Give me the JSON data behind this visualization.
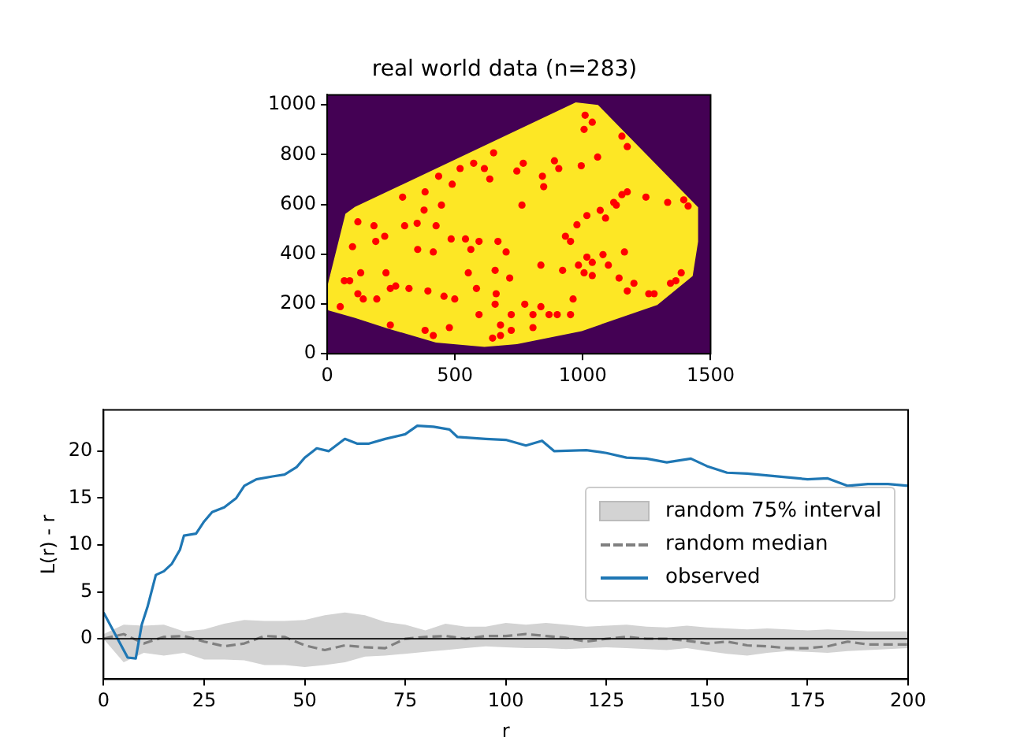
{
  "chart_data": [
    {
      "type": "scatter",
      "title": "real world data (n=283)",
      "xlim": [
        0,
        1500
      ],
      "ylim": [
        0,
        1040
      ],
      "xticks": [
        0,
        500,
        1000,
        1500
      ],
      "yticks": [
        0,
        200,
        400,
        600,
        800,
        1000
      ],
      "grid": false,
      "legend": false,
      "bands": [
        {
          "axis": "y",
          "from": 0,
          "to": 1040,
          "color": "#440154"
        }
      ],
      "series": [
        {
          "type": "area",
          "color": "#fde725",
          "x": [
            4,
            4,
            74,
            110,
            973,
            1058,
            1448,
            1448,
            1427,
            1290,
            995,
            742,
            615,
            426,
            236,
            110,
            4
          ],
          "values": [
            178,
            272,
            560,
            587,
            1006,
            996,
            587,
            451,
            314,
            199,
            94,
            42,
            31,
            48,
            105,
            147,
            178
          ]
        },
        {
          "color": "#ff0000",
          "x": [
            51,
            67,
            88,
            120,
            99,
            131,
            120,
            141,
            183,
            190,
            194,
            225,
            230,
            247,
            247,
            303,
            295,
            320,
            352,
            354,
            379,
            383,
            394,
            415,
            426,
            436,
            447,
            457,
            489,
            485,
            499,
            520,
            541,
            552,
            573,
            584,
            594,
            615,
            636,
            651,
            657,
            661,
            668,
            678,
            700,
            714,
            742,
            762,
            767,
            773,
            805,
            836,
            836,
            842,
            847,
            889,
            906,
            921,
            952,
            962,
            977,
            994,
            1005,
            1009,
            1037,
            1016,
            1037,
            1058,
            1068,
            1089,
            1121,
            1131,
            1142,
            1153,
            1163,
            1174,
            1174,
            1153,
            1174,
            1200,
            1247,
            1258,
            1279,
            1332,
            1343,
            1364,
            1385,
            1395,
            1412,
            868,
            900,
            932,
            952,
            983,
            1005,
            1016,
            1079,
            1100,
            1037,
            678,
            720,
            647,
            478,
            415,
            383,
            562,
            594,
            268,
            805,
            720,
            657
          ],
          "values": [
            189,
            293,
            293,
            530,
            430,
            325,
            241,
            220,
            514,
            451,
            220,
            472,
            325,
            262,
            115,
            514,
            629,
            262,
            524,
            419,
            577,
            650,
            252,
            409,
            514,
            713,
            597,
            231,
            681,
            461,
            220,
            744,
            461,
            325,
            765,
            262,
            157,
            744,
            702,
            807,
            335,
            241,
            451,
            115,
            409,
            304,
            734,
            597,
            765,
            199,
            105,
            189,
            356,
            713,
            671,
            775,
            744,
            335,
            157,
            220,
            518,
            755,
            901,
            958,
            930,
            555,
            314,
            790,
            576,
            545,
            608,
            597,
            304,
            639,
            409,
            650,
            832,
            874,
            252,
            283,
            629,
            241,
            241,
            608,
            283,
            293,
            325,
            618,
            593,
            157,
            157,
            472,
            451,
            356,
            325,
            388,
            398,
            356,
            367,
            73,
            94,
            63,
            105,
            73,
            94,
            419,
            451,
            272,
            157,
            157,
            199
          ]
        }
      ]
    },
    {
      "type": "line",
      "xlabel": "r",
      "ylabel": "L(r) - r",
      "xlim": [
        0,
        200
      ],
      "ylim": [
        -4.3,
        24.4
      ],
      "xticks": [
        0,
        25,
        50,
        75,
        100,
        125,
        150,
        175,
        200
      ],
      "yticks": [
        0,
        5,
        10,
        15,
        20
      ],
      "grid": false,
      "legend": "right",
      "marker": "none",
      "ref_lines": [
        {
          "axis": "y",
          "value": 0,
          "color": "#000000"
        }
      ],
      "series": [
        {
          "name": "random 75% interval",
          "type": "area",
          "color": "#d3d3d3",
          "x": [
            0,
            5,
            10,
            15,
            20,
            25,
            30,
            35,
            40,
            45,
            50,
            55,
            60,
            65,
            70,
            75,
            80,
            85,
            90,
            95,
            100,
            105,
            110,
            115,
            120,
            125,
            130,
            135,
            140,
            145,
            150,
            155,
            160,
            165,
            170,
            175,
            180,
            185,
            190,
            195,
            200
          ],
          "values": [
            null,
            null,
            null,
            null,
            null,
            null,
            null,
            null,
            null,
            null,
            null,
            null,
            null,
            null,
            null,
            null,
            null,
            null,
            null,
            null,
            null,
            null,
            null,
            null,
            null,
            null,
            null,
            null,
            null,
            null,
            null,
            null,
            null,
            null,
            null,
            null,
            null,
            null,
            null,
            null,
            null
          ],
          "lower": [
            0,
            -2.5,
            -1.5,
            -1.8,
            -1.5,
            -2.2,
            -2.2,
            -2.3,
            -2.8,
            -2.8,
            -3,
            -2.8,
            -2.5,
            -1.9,
            -1.8,
            -1.6,
            -1.4,
            -1.2,
            -1.0,
            -0.8,
            -0.9,
            -1.0,
            -1.0,
            -1.1,
            -1.0,
            -0.9,
            -1.0,
            -1.1,
            -1.2,
            -1.0,
            -1.3,
            -1.6,
            -1.8,
            -1.5,
            -1.3,
            -1.4,
            -1.5,
            -1.3,
            -1.2,
            -1.1,
            -1.0
          ],
          "upper": [
            0.5,
            1.5,
            1.4,
            1.5,
            0.8,
            1.0,
            1.6,
            2.0,
            1.9,
            1.9,
            2.0,
            2.5,
            2.8,
            2.5,
            1.8,
            1.5,
            0.9,
            1.6,
            1.3,
            1.3,
            1.7,
            1.5,
            1.7,
            1.5,
            1.3,
            1.4,
            1.5,
            1.3,
            1.2,
            1.4,
            1.2,
            1.1,
            1.0,
            1.1,
            1.0,
            0.9,
            1.0,
            0.9,
            0.8,
            0.8,
            0.8
          ]
        },
        {
          "name": "random median",
          "line_style": "dashed",
          "color": "#808080",
          "x": [
            0,
            5,
            10,
            15,
            20,
            25,
            30,
            35,
            40,
            45,
            50,
            55,
            60,
            65,
            70,
            75,
            80,
            85,
            90,
            95,
            100,
            105,
            110,
            115,
            120,
            125,
            130,
            135,
            140,
            145,
            150,
            155,
            160,
            165,
            170,
            175,
            180,
            185,
            190,
            195,
            200
          ],
          "values": [
            0,
            0.5,
            -0.5,
            0.2,
            0.3,
            -0.3,
            -0.8,
            -0.5,
            0.3,
            0.2,
            -0.7,
            -1.2,
            -0.7,
            -0.9,
            -1.0,
            0,
            0.2,
            0.3,
            0,
            0.3,
            0.3,
            0.5,
            0.3,
            0.1,
            -0.3,
            0,
            0.2,
            0,
            0,
            -0.2,
            -0.5,
            -0.3,
            -0.7,
            -0.8,
            -1.0,
            -1.0,
            -0.8,
            -0.3,
            -0.6,
            -0.6,
            -0.6
          ]
        },
        {
          "name": "observed",
          "line_style": "solid",
          "color": "#1f77b4",
          "x": [
            0,
            6,
            8,
            9.5,
            11,
            13,
            15,
            17,
            19,
            20,
            23,
            25,
            27,
            30,
            33,
            35,
            38,
            42,
            45,
            48,
            50,
            53,
            56,
            60,
            63,
            66,
            70,
            75,
            78,
            82,
            86,
            88,
            95,
            100,
            105,
            109,
            112,
            120,
            125,
            130,
            135,
            140,
            146,
            150,
            155,
            160,
            170,
            175,
            180,
            185,
            190,
            195,
            200
          ],
          "values": [
            2.8,
            -2,
            -2.1,
            1.5,
            3.5,
            6.8,
            7.2,
            8,
            9.5,
            11,
            11.2,
            12.5,
            13.5,
            14,
            15,
            16.3,
            17,
            17.3,
            17.5,
            18.3,
            19.3,
            20.3,
            20,
            21.3,
            20.8,
            20.8,
            21.3,
            21.8,
            22.7,
            22.6,
            22.3,
            21.5,
            21.3,
            21.2,
            20.6,
            21.1,
            20,
            20.1,
            19.8,
            19.3,
            19.2,
            18.8,
            19.2,
            18.4,
            17.7,
            17.6,
            17.2,
            17.0,
            17.1,
            16.3,
            16.5,
            16.5,
            16.3
          ]
        }
      ]
    }
  ]
}
